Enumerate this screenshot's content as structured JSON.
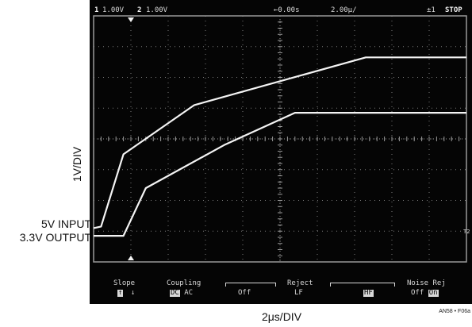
{
  "labels": {
    "vertical_scale": "1V/DIV",
    "trace_input": "5V INPUT",
    "trace_output": "3.3V OUTPUT",
    "horizontal_scale": "2μs/DIV",
    "figure_ref": "AN58 • F06a"
  },
  "scope_header": {
    "ch1_number": "1",
    "ch1_scale": "1.00V",
    "ch2_number": "2",
    "ch2_scale": "1.00V",
    "time_offset": "←0.00s",
    "timebase": "2.00μ/",
    "trigger": "±1",
    "status": "STOP"
  },
  "scope_menu": {
    "slope": {
      "label": "Slope",
      "options": [
        "↑",
        "↓"
      ]
    },
    "coupling": {
      "label": "Coupling",
      "options": [
        "DC",
        "AC"
      ]
    },
    "reject": {
      "label": "Reject",
      "options": [
        "Off",
        "LF",
        "HF"
      ]
    },
    "noise_rej": {
      "label": "Noise Rej",
      "options": [
        "Off",
        "On"
      ]
    }
  },
  "side_marker": "T2",
  "grid": {
    "divisions_x": 10,
    "divisions_y": 8
  },
  "colors": {
    "screen": "#050505",
    "trace": "#f4f4f4",
    "graticule": "#9a9a9a",
    "text": "#d8d8d8"
  },
  "chart_data": {
    "type": "line",
    "x_unit": "divisions",
    "y_unit": "divisions",
    "xlim": [
      0,
      10
    ],
    "ylim": [
      0,
      8
    ],
    "series": [
      {
        "name": "5V INPUT",
        "x": [
          0,
          0.2,
          0.8,
          2.7,
          7.3,
          10
        ],
        "y": [
          1.1,
          1.15,
          3.5,
          5.1,
          6.65,
          6.65
        ]
      },
      {
        "name": "3.3V OUTPUT",
        "x": [
          0,
          0.8,
          1.4,
          3.5,
          5.4,
          10
        ],
        "y": [
          0.85,
          0.85,
          2.4,
          3.8,
          4.85,
          4.85
        ]
      }
    ]
  }
}
